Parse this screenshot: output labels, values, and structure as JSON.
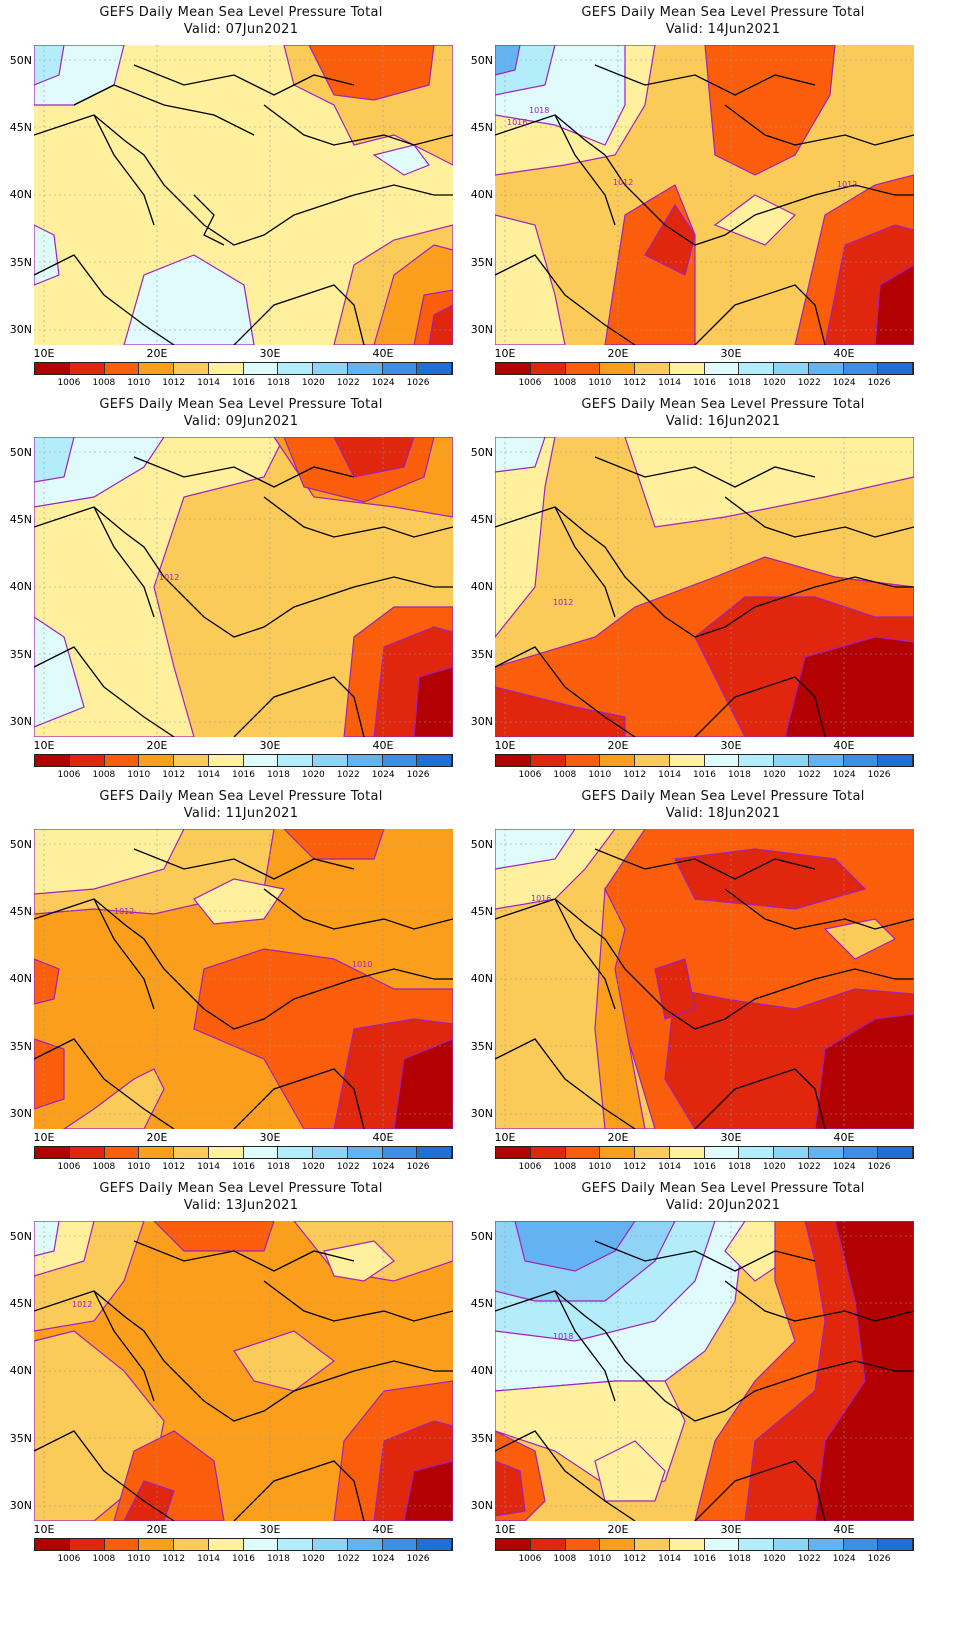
{
  "map_title": "GEFS Daily Mean Sea Level Pressure Total",
  "valid_prefix": "Valid:",
  "lat_labels": [
    "50N",
    "45N",
    "40N",
    "35N",
    "30N"
  ],
  "lon_labels": [
    "10E",
    "20E",
    "30E",
    "40E"
  ],
  "colorbar": {
    "labels": [
      "1006",
      "1008",
      "1010",
      "1012",
      "1014",
      "1016",
      "1018",
      "1020",
      "1022",
      "1024",
      "1026"
    ],
    "colors": [
      "#b30000",
      "#e0260d",
      "#fa5e0a",
      "#fb9e1c",
      "#fbcb5a",
      "#fff09e",
      "#e0fbfb",
      "#b3ecfb",
      "#8fd3f6",
      "#63b3f3",
      "#3b8fe6",
      "#1f6fd9"
    ]
  },
  "panels": [
    {
      "valid": "07Jun2021",
      "contour_labels": []
    },
    {
      "valid": "14Jun2021",
      "contour_labels": [
        "1018",
        "1016",
        "1012",
        "1012"
      ]
    },
    {
      "valid": "09Jun2021",
      "contour_labels": [
        "1012"
      ]
    },
    {
      "valid": "16Jun2021",
      "contour_labels": [
        "1012"
      ]
    },
    {
      "valid": "11Jun2021",
      "contour_labels": [
        "1012",
        "1010"
      ]
    },
    {
      "valid": "18Jun2021",
      "contour_labels": [
        "1016"
      ]
    },
    {
      "valid": "13Jun2021",
      "contour_labels": [
        "1012"
      ]
    },
    {
      "valid": "20Jun2021",
      "contour_labels": [
        "1018"
      ]
    }
  ]
}
